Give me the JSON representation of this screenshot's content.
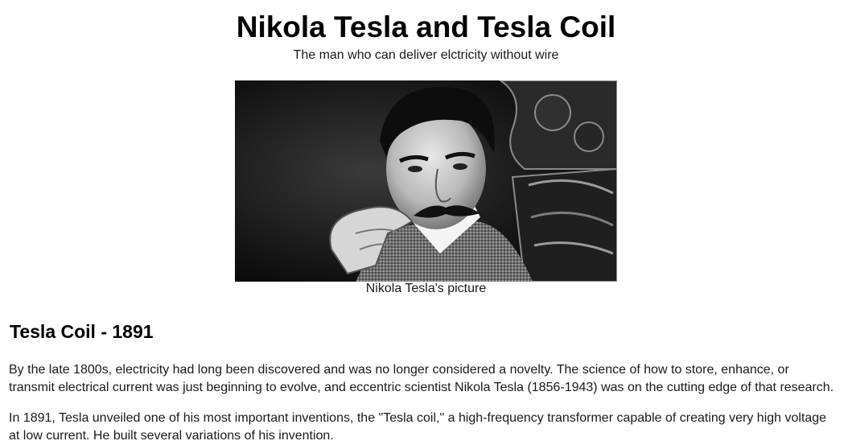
{
  "header": {
    "title": "Nikola Tesla and Tesla Coil",
    "subtitle": "The man who can deliver elctricity without wire"
  },
  "figure": {
    "caption": "Nikola Tesla's picture",
    "image_description": "black-and-white-portrait"
  },
  "section": {
    "heading": "Tesla Coil - 1891",
    "paragraphs": [
      "By the late 1800s, electricity had long been discovered and was no longer considered a novelty. The science of how to store, enhance, or transmit electrical current was just beginning to evolve, and eccentric scientist Nikola Tesla (1856-1943) was on the cutting edge of that research.",
      "In 1891, Tesla unveiled one of his most important inventions, the \"Tesla coil,\" a high-frequency transformer capable of creating very high voltage at low current. He built several variations of his invention."
    ]
  },
  "colors": {
    "text": "#1a1a1a",
    "heading": "#000000",
    "background": "#ffffff"
  }
}
